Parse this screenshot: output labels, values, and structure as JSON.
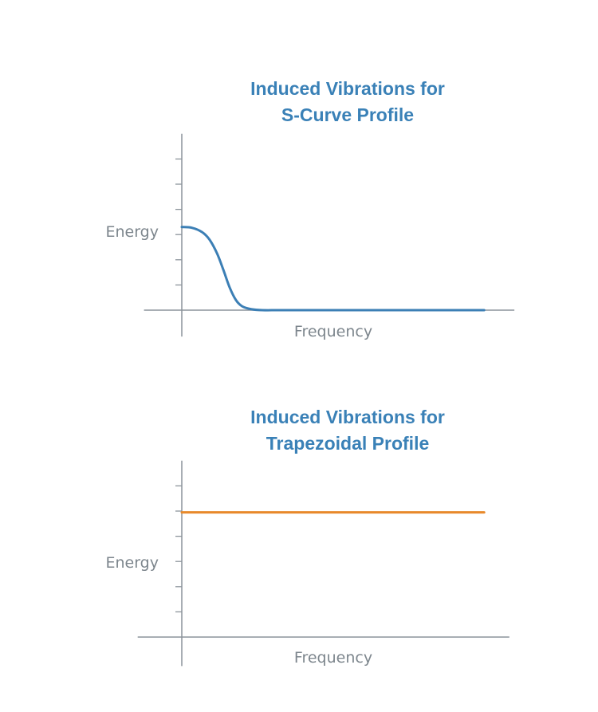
{
  "chart_data": [
    {
      "type": "line",
      "title_lines": [
        "Induced Vibrations for",
        "S-Curve Profile"
      ],
      "xlabel": "Frequency",
      "ylabel": "Energy",
      "xlim": [
        -1.5,
        13.2
      ],
      "ylim": [
        -1.05,
        7.0
      ],
      "y_ticks": [
        1,
        2,
        3,
        4,
        5,
        6
      ],
      "tick_labels_shown": false,
      "grid": false,
      "series": [
        {
          "color": "#3c7fb5",
          "x": [
            0,
            0.4,
            0.8,
            1.1,
            1.4,
            1.65,
            1.9,
            2.15,
            2.4,
            2.75,
            3.2,
            4,
            6,
            8,
            10,
            12
          ],
          "y": [
            3.3,
            3.27,
            3.1,
            2.8,
            2.25,
            1.6,
            0.9,
            0.4,
            0.15,
            0.04,
            0,
            0,
            0,
            0,
            0,
            0
          ]
        }
      ]
    },
    {
      "type": "line",
      "title_lines": [
        "Induced Vibrations for",
        "Trapezoidal Profile"
      ],
      "xlabel": "Frequency",
      "ylabel": "Energy",
      "xlim": [
        -1.75,
        13.0
      ],
      "ylim": [
        -1.15,
        7.0
      ],
      "y_ticks": [
        1,
        2,
        3,
        4,
        5,
        6
      ],
      "tick_labels_shown": false,
      "grid": false,
      "series": [
        {
          "color": "#e8892b",
          "x": [
            0,
            12
          ],
          "y": [
            4.95,
            4.95
          ]
        }
      ]
    }
  ]
}
